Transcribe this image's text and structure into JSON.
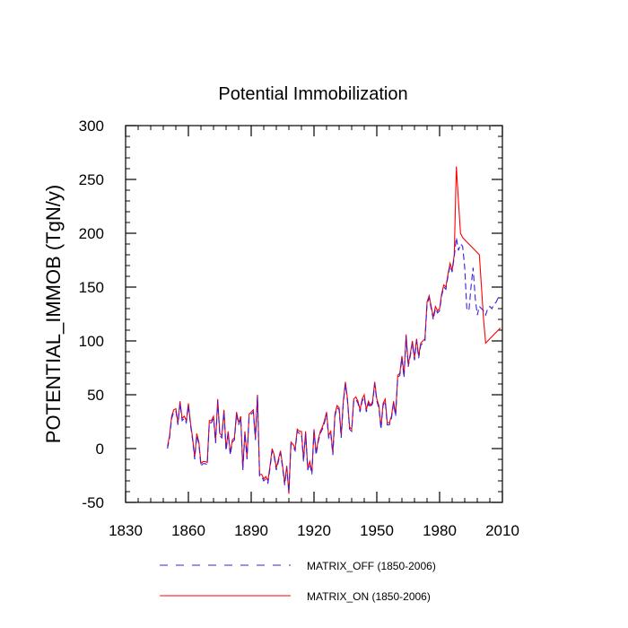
{
  "chart_data": {
    "type": "line",
    "title": "Potential Immobilization",
    "xlabel": "",
    "ylabel": "POTENTIAL_IMMOB  (TgN/y)",
    "xlim": [
      1830,
      2010
    ],
    "ylim": [
      -50,
      300
    ],
    "xticks": [
      1830,
      1860,
      1890,
      1920,
      1950,
      1980,
      2010
    ],
    "yticks": [
      -50,
      0,
      50,
      100,
      150,
      200,
      250,
      300
    ],
    "x_start": 1850,
    "legend_position": "bottom",
    "series": [
      {
        "name": "MATRIX_OFF (1850-2006)",
        "color": "#3b1fd6",
        "dash": "dashed",
        "values": [
          0,
          10,
          28,
          34,
          35,
          22,
          42,
          26,
          28,
          24,
          40,
          22,
          8,
          -10,
          12,
          4,
          -16,
          -14,
          -14,
          -15,
          24,
          24,
          28,
          5,
          44,
          12,
          10,
          34,
          -2,
          14,
          -6,
          6,
          8,
          32,
          22,
          28,
          -20,
          14,
          -10,
          30,
          32,
          34,
          8,
          48,
          -26,
          -26,
          -30,
          -28,
          -32,
          -18,
          -2,
          -8,
          -20,
          -12,
          -4,
          -18,
          -34,
          -18,
          -40,
          4,
          2,
          -2,
          16,
          14,
          14,
          -12,
          14,
          -20,
          -14,
          -24,
          16,
          -6,
          6,
          14,
          18,
          24,
          32,
          10,
          14,
          -6,
          30,
          38,
          36,
          10,
          42,
          60,
          44,
          18,
          16,
          44,
          46,
          42,
          34,
          44,
          48,
          34,
          42,
          38,
          42,
          60,
          44,
          38,
          18,
          40,
          44,
          22,
          22,
          28,
          42,
          30,
          66,
          68,
          84,
          66,
          104,
          76,
          86,
          98,
          82,
          100,
          84,
          96,
          98,
          100,
          134,
          140,
          130,
          120,
          130,
          126,
          128,
          142,
          150,
          148,
          160,
          170,
          164,
          178,
          196,
          184,
          190,
          188,
          168,
          130,
          128,
          150,
          168,
          140,
          124,
          132,
          130,
          128,
          124,
          130,
          132,
          130,
          134,
          136,
          140,
          142
        ]
      },
      {
        "name": "MATRIX_ON (1850-2006)",
        "color": "#ff0000",
        "dash": "solid",
        "values": [
          2,
          12,
          30,
          36,
          37,
          24,
          44,
          28,
          30,
          26,
          42,
          24,
          10,
          -8,
          14,
          6,
          -14,
          -12,
          -12,
          -13,
          26,
          26,
          30,
          7,
          46,
          14,
          12,
          36,
          0,
          16,
          -4,
          8,
          10,
          34,
          24,
          30,
          -18,
          16,
          -8,
          32,
          34,
          36,
          10,
          50,
          -24,
          -24,
          -28,
          -26,
          -30,
          -16,
          0,
          -6,
          -18,
          -10,
          -2,
          -16,
          -32,
          -16,
          -42,
          6,
          4,
          0,
          18,
          16,
          16,
          -10,
          16,
          -18,
          -12,
          -22,
          18,
          -4,
          8,
          16,
          20,
          26,
          34,
          12,
          16,
          -4,
          32,
          40,
          38,
          12,
          44,
          62,
          46,
          20,
          18,
          46,
          48,
          44,
          36,
          46,
          50,
          36,
          44,
          40,
          44,
          62,
          46,
          40,
          20,
          42,
          46,
          24,
          24,
          30,
          44,
          32,
          68,
          70,
          86,
          68,
          106,
          78,
          88,
          100,
          84,
          102,
          86,
          98,
          100,
          102,
          136,
          142,
          132,
          122,
          132,
          128,
          130,
          144,
          152,
          150,
          162,
          172,
          166,
          180,
          262,
          230,
          200,
          196,
          194,
          192,
          190,
          188,
          186,
          184,
          182,
          180,
          150,
          120,
          98,
          100,
          102,
          104,
          106,
          108,
          110,
          112
        ]
      }
    ]
  }
}
